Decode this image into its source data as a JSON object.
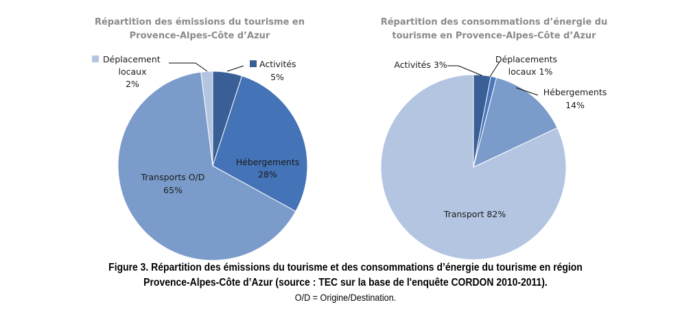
{
  "chart_data": [
    {
      "type": "pie",
      "title_lines": [
        "Répartition des émissions du tourisme en",
        "Provence-Alpes-Côte d’Azur"
      ],
      "slices": [
        {
          "name": "Activités",
          "value": 5,
          "pct_label": "5%",
          "color": "#3a5f96"
        },
        {
          "name": "Hébergements",
          "value": 28,
          "pct_label": "28%",
          "color": "#4473b7"
        },
        {
          "name": "Transports O/D",
          "value": 65,
          "pct_label": "65%",
          "color": "#7b9ccb"
        },
        {
          "name": "Déplacement locaux",
          "value": 2,
          "pct_label": "2%",
          "color": "#b4c5e2"
        }
      ],
      "legend": {
        "activites": "Activités",
        "deplacement": "Déplacement"
      }
    },
    {
      "type": "pie",
      "title_lines": [
        "Répartition des consommations d’énergie du",
        "tourisme en Provence-Alpes-Côte d’Azur"
      ],
      "slices": [
        {
          "name": "Activités",
          "value": 3,
          "pct_label": "3%",
          "color": "#3a5f96"
        },
        {
          "name": "Déplacements locaux",
          "value": 1,
          "pct_label": "1%",
          "color": "#4a78bd"
        },
        {
          "name": "Hébergements",
          "value": 14,
          "pct_label": "14%",
          "color": "#7b9ccb"
        },
        {
          "name": "Transport",
          "value": 82,
          "pct_label": "82%",
          "color": "#b4c5e2"
        }
      ]
    }
  ],
  "labels": {
    "c1_activites_pct": "5%",
    "c1_deplacement_line2": "locaux",
    "c1_deplacement_pct": "2%",
    "c1_hebergements": "Hébergements",
    "c1_hebergements_pct": "28%",
    "c1_transports": "Transports O/D",
    "c1_transports_pct": "65%",
    "c2_activites": "Activités 3%",
    "c2_deplacements_line1": "Déplacements",
    "c2_deplacements_line2": "locaux 1%",
    "c2_hebergements": "Hébergements",
    "c2_hebergements_pct": "14%",
    "c2_transport": "Transport 82%"
  },
  "caption": {
    "line1": "Figure 3. Répartition des émissions du tourisme et des consommations d’énergie du tourisme en région",
    "line2": "Provence-Alpes-Côte d’Azur (source : TEC sur la base de l'enquête CORDON 2010-2011).",
    "line3": "O/D = Origine/Destination."
  }
}
